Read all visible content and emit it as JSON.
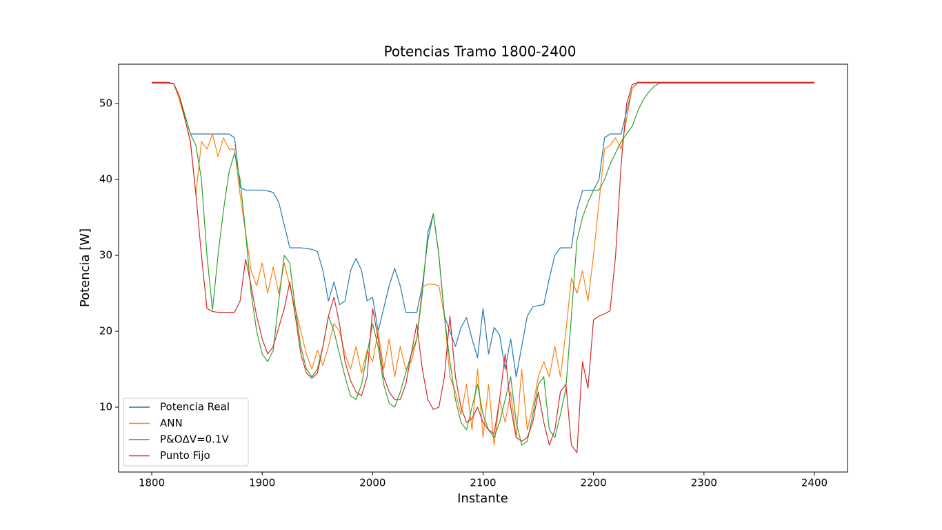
{
  "chart_data": {
    "type": "line",
    "title": "Potencias Tramo 1800-2400",
    "xlabel": "Instante",
    "ylabel": "Potencia [W]",
    "legend": "lower left",
    "xlim": [
      1770,
      2430
    ],
    "ylim": [
      1.45,
      55.2
    ],
    "xticks": [
      1800,
      1900,
      2000,
      2100,
      2200,
      2300,
      2400
    ],
    "yticks": [
      10,
      20,
      30,
      40,
      50
    ],
    "x": [
      1800,
      1805,
      1810,
      1815,
      1820,
      1825,
      1830,
      1835,
      1840,
      1845,
      1850,
      1855,
      1860,
      1865,
      1870,
      1875,
      1880,
      1885,
      1890,
      1895,
      1900,
      1905,
      1910,
      1915,
      1920,
      1925,
      1930,
      1935,
      1940,
      1945,
      1950,
      1955,
      1960,
      1965,
      1970,
      1975,
      1980,
      1985,
      1990,
      1995,
      2000,
      2005,
      2010,
      2015,
      2020,
      2025,
      2030,
      2035,
      2040,
      2045,
      2050,
      2055,
      2060,
      2065,
      2070,
      2075,
      2080,
      2085,
      2090,
      2095,
      2100,
      2105,
      2110,
      2115,
      2120,
      2125,
      2130,
      2135,
      2140,
      2145,
      2150,
      2155,
      2160,
      2165,
      2170,
      2175,
      2180,
      2185,
      2190,
      2195,
      2200,
      2205,
      2210,
      2215,
      2220,
      2225,
      2230,
      2235,
      2240,
      2245,
      2250,
      2255,
      2260,
      2265,
      2270,
      2300,
      2350,
      2400
    ],
    "series": [
      {
        "name": "Potencia Real",
        "color": "#1f77b4",
        "values": [
          52.8,
          52.8,
          52.8,
          52.8,
          52.6,
          51,
          48.5,
          46,
          46,
          46,
          46,
          46,
          46,
          46,
          46,
          45.5,
          39,
          38.6,
          38.6,
          38.6,
          38.6,
          38.5,
          38.3,
          37,
          34,
          31,
          31,
          31,
          30.9,
          30.8,
          30.5,
          28,
          24,
          26.5,
          23.5,
          24,
          28,
          29.6,
          28,
          24,
          24.5,
          20,
          23,
          26,
          28.3,
          26,
          22.5,
          22.5,
          22.5,
          26,
          32,
          35.5,
          30,
          22,
          20,
          18,
          20.5,
          21.8,
          19,
          16.5,
          23,
          17,
          20.5,
          19.5,
          15,
          19,
          14,
          18,
          22,
          23.2,
          23.4,
          23.5,
          27,
          30,
          31,
          31,
          31,
          36,
          38.5,
          38.6,
          38.6,
          40,
          45.5,
          46,
          46,
          46,
          49,
          52,
          52.8,
          52.8,
          52.8,
          52.8,
          52.8,
          52.8,
          52.8,
          52.8,
          52.8,
          52.8
        ]
      },
      {
        "name": "ANN",
        "color": "#ff7f0e",
        "values": [
          52.7,
          52.7,
          52.7,
          52.7,
          52.6,
          50.5,
          48,
          45,
          38,
          45,
          44,
          46,
          43,
          45.5,
          44,
          44,
          38,
          33,
          28,
          26,
          29,
          25,
          28.5,
          25,
          29,
          26,
          23,
          20,
          17,
          15,
          17.5,
          15.5,
          18,
          21,
          20,
          17,
          15,
          18,
          14.5,
          17.5,
          16,
          20,
          15,
          19,
          14,
          18,
          15,
          16,
          19,
          25.8,
          26.2,
          26.2,
          26,
          22,
          14,
          12,
          9,
          13,
          7,
          15,
          6,
          13,
          5,
          11,
          8,
          12,
          6,
          15,
          7,
          10,
          14,
          16,
          14,
          18,
          14,
          20,
          27,
          25,
          28,
          24,
          30,
          37,
          44,
          44.5,
          45.5,
          44,
          48,
          52,
          52.7,
          52.7,
          52.7,
          52.7,
          52.7,
          52.7,
          52.7,
          52.7,
          52.7,
          52.7
        ]
      },
      {
        "name": "P&OΔV=0.1V",
        "color": "#2ca02c",
        "values": [
          52.7,
          52.7,
          52.7,
          52.7,
          52.6,
          51,
          48.5,
          46,
          44.5,
          40,
          30,
          22.8,
          30,
          36,
          41,
          43.5,
          40,
          33,
          25,
          20,
          17,
          16,
          17.5,
          24,
          30,
          29,
          23,
          18,
          15,
          14,
          15,
          18,
          22,
          20,
          17,
          14,
          11.5,
          11,
          13,
          17,
          21,
          18,
          13,
          10.5,
          10,
          12,
          14.5,
          17,
          19,
          25,
          33,
          35.5,
          30,
          22,
          16,
          11,
          8,
          7,
          10,
          13,
          9,
          7,
          6,
          8,
          11,
          14,
          8,
          5,
          5.5,
          9,
          13,
          14,
          7,
          6,
          9,
          12.5,
          22,
          32,
          35,
          37,
          38.6,
          38.6,
          40,
          42,
          43.5,
          45,
          46,
          47,
          49,
          50.5,
          51.5,
          52.3,
          52.7,
          52.7,
          52.7,
          52.7,
          52.7,
          52.7
        ]
      },
      {
        "name": "Punto Fijo",
        "color": "#d62728",
        "values": [
          52.8,
          52.8,
          52.8,
          52.8,
          52.6,
          51,
          48,
          45,
          38,
          30,
          23,
          22.6,
          22.5,
          22.5,
          22.5,
          22.5,
          24,
          29.5,
          26,
          22,
          19,
          17,
          18,
          20.5,
          23,
          26.5,
          22,
          17,
          14.5,
          13.8,
          14.5,
          18,
          22,
          24.5,
          21,
          16,
          13.5,
          12,
          11.5,
          14,
          23,
          19,
          14,
          12,
          11,
          11,
          13,
          17,
          21,
          15,
          11,
          9.7,
          10,
          14,
          22,
          14,
          10,
          8,
          8.5,
          10,
          8,
          7,
          6.5,
          11,
          17,
          10,
          6,
          5.5,
          6,
          8,
          12,
          8,
          5,
          7,
          12,
          13,
          5,
          4,
          16,
          12.5,
          21.5,
          22,
          22.3,
          22.7,
          30,
          42,
          50,
          52.5,
          52.8,
          52.8,
          52.8,
          52.8,
          52.8,
          52.8,
          52.8,
          52.8,
          52.8,
          52.8
        ]
      }
    ]
  }
}
